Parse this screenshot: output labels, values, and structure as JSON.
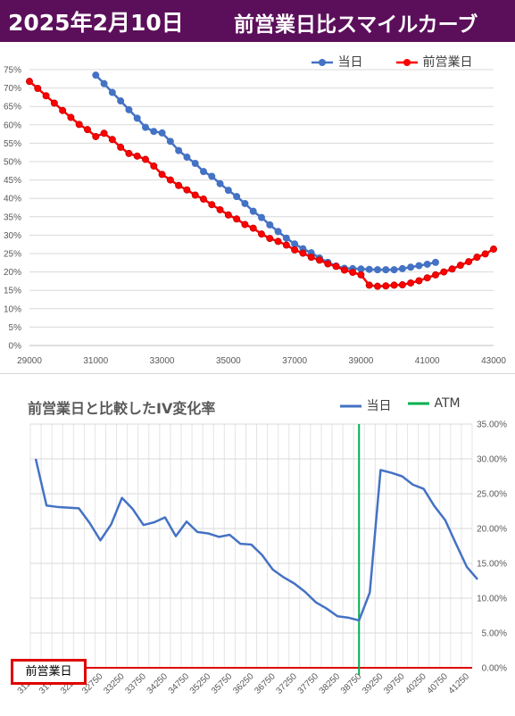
{
  "header": {
    "date": "2025年2月10日",
    "title": "前営業日比スマイルカーブ"
  },
  "chart_data": [
    {
      "type": "line",
      "title": "",
      "legend": {
        "placement": "top-right",
        "entries": [
          "当日",
          "前営業日"
        ]
      },
      "xlim": [
        29000,
        43000
      ],
      "ylim": [
        0,
        75
      ],
      "x_ticks": [
        "29000",
        "31000",
        "33000",
        "35000",
        "37000",
        "39000",
        "41000",
        "43000"
      ],
      "y_ticks": [
        "0%",
        "5%",
        "10%",
        "15%",
        "20%",
        "25%",
        "30%",
        "35%",
        "40%",
        "45%",
        "50%",
        "55%",
        "60%",
        "65%",
        "70%",
        "75%"
      ],
      "grid": true,
      "series": [
        {
          "name": "当日",
          "color": "#4472c4",
          "x": [
            31000,
            31250,
            31500,
            31750,
            32000,
            32250,
            32500,
            32750,
            33000,
            33250,
            33500,
            33750,
            34000,
            34250,
            34500,
            34750,
            35000,
            35250,
            35500,
            35750,
            36000,
            36250,
            36500,
            36750,
            37000,
            37250,
            37500,
            37750,
            38000,
            38250,
            38500,
            38750,
            39000,
            39250,
            39500,
            39750,
            40000,
            40250,
            40500,
            40750,
            41000,
            41250
          ],
          "y": [
            73.5,
            71.2,
            68.8,
            66.5,
            64.1,
            61.8,
            59.3,
            58.2,
            57.8,
            55.5,
            53.0,
            51.2,
            49.5,
            47.3,
            46.0,
            44.0,
            42.2,
            40.5,
            38.6,
            36.5,
            34.8,
            32.8,
            31.0,
            29.2,
            27.6,
            26.3,
            25.2,
            23.8,
            22.6,
            21.6,
            21.0,
            20.9,
            20.8,
            20.7,
            20.6,
            20.6,
            20.6,
            20.9,
            21.3,
            21.7,
            22.1,
            22.6
          ]
        },
        {
          "name": "前営業日",
          "color": "#ff0000",
          "x": [
            29000,
            29250,
            29500,
            29750,
            30000,
            30250,
            30500,
            30750,
            31000,
            31250,
            31500,
            31750,
            32000,
            32250,
            32500,
            32750,
            33000,
            33250,
            33500,
            33750,
            34000,
            34250,
            34500,
            34750,
            35000,
            35250,
            35500,
            35750,
            36000,
            36250,
            36500,
            36750,
            37000,
            37250,
            37500,
            37750,
            38000,
            38250,
            38500,
            38750,
            39000,
            39250,
            39500,
            39750,
            40000,
            40250,
            40500,
            40750,
            41000,
            41250,
            41500,
            41750,
            42000,
            42250,
            42500,
            42750,
            43000
          ],
          "y": [
            71.8,
            69.9,
            67.9,
            65.9,
            63.9,
            62.0,
            60.1,
            58.7,
            56.8,
            57.7,
            56.0,
            53.9,
            52.2,
            51.5,
            50.6,
            48.8,
            46.5,
            45.0,
            43.5,
            42.3,
            40.9,
            39.8,
            38.3,
            36.9,
            35.5,
            34.4,
            32.9,
            31.9,
            30.3,
            29.1,
            28.3,
            27.3,
            26.0,
            25.1,
            24.0,
            23.2,
            22.2,
            21.5,
            20.5,
            19.9,
            19.2,
            16.4,
            16.1,
            16.2,
            16.4,
            16.5,
            17.0,
            17.6,
            18.4,
            19.2,
            20.0,
            20.8,
            21.8,
            22.8,
            24.0,
            24.9,
            26.2
          ]
        }
      ]
    },
    {
      "type": "line",
      "title": "前営業日と比較したIV変化率",
      "legend": {
        "placement": "top-right",
        "entries": [
          "当日",
          "ATM"
        ]
      },
      "ylim": [
        0,
        35
      ],
      "y_ticks": [
        "0.00%",
        "5.00%",
        "10.00%",
        "15.00%",
        "20.00%",
        "25.00%",
        "30.00%",
        "35.00%"
      ],
      "categories": [
        "31250",
        "31500",
        "31750",
        "32000",
        "32250",
        "32500",
        "32750",
        "33000",
        "33250",
        "33500",
        "33750",
        "34000",
        "34250",
        "34500",
        "34750",
        "35000",
        "35250",
        "35500",
        "35750",
        "36000",
        "36250",
        "36500",
        "36750",
        "37000",
        "37250",
        "37500",
        "37750",
        "38000",
        "38250",
        "38500",
        "38750",
        "39000",
        "39250",
        "39500",
        "39750",
        "40000",
        "40250",
        "40500",
        "40750",
        "41000",
        "41250"
      ],
      "x_tick_labels": [
        "31250",
        "31750",
        "32250",
        "32750",
        "33250",
        "33750",
        "34250",
        "34750",
        "35250",
        "35750",
        "36250",
        "36750",
        "37250",
        "37750",
        "38250",
        "38750",
        "39250",
        "39750",
        "40250",
        "40750",
        "41250"
      ],
      "atm_strike": "38750",
      "baseline_label": "前営業日",
      "series": [
        {
          "name": "当日",
          "color": "#4472c4",
          "values": [
            30.0,
            23.3,
            23.1,
            23.0,
            22.9,
            20.8,
            18.3,
            20.6,
            24.4,
            22.8,
            20.5,
            20.9,
            21.6,
            18.9,
            21.0,
            19.5,
            19.3,
            18.8,
            19.1,
            17.8,
            17.7,
            16.2,
            14.1,
            13.0,
            12.1,
            10.9,
            9.4,
            8.5,
            7.4,
            7.2,
            6.8,
            10.8,
            28.4,
            28.0,
            27.5,
            26.3,
            25.7,
            23.2,
            21.2,
            17.8,
            14.5
          ]
        }
      ],
      "tail_point": 12.7,
      "atm_color": "#00b050",
      "baseline_color": "#e00000"
    }
  ]
}
